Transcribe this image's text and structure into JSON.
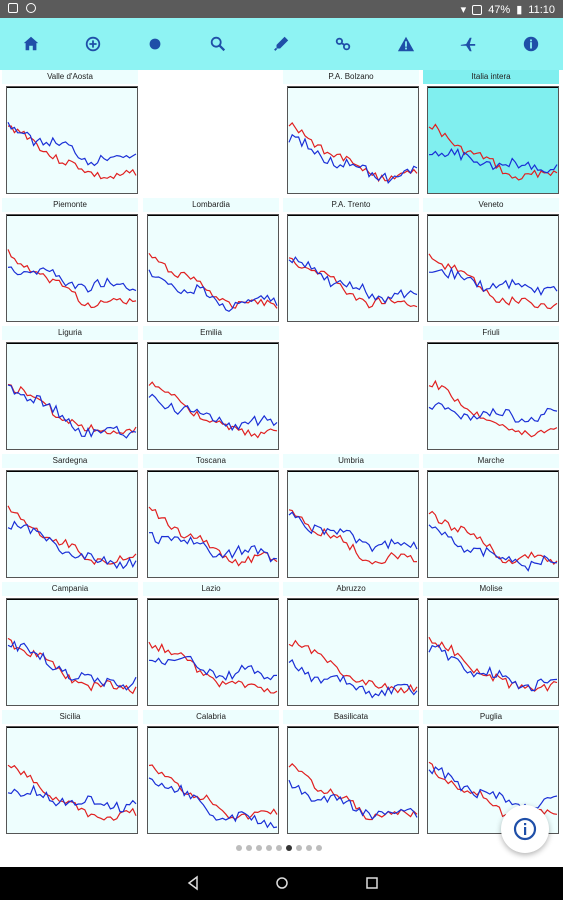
{
  "status_bar": {
    "battery": "47%",
    "time": "11:10",
    "icons": [
      "image-icon",
      "clock-icon",
      "wifi-icon",
      "sim-icon",
      "battery-icon"
    ]
  },
  "toolbar": {
    "icons": [
      "home-icon",
      "scale-icon",
      "virus-icon",
      "search-icon",
      "dropper-icon",
      "graph-icon",
      "warning-icon",
      "plane-icon",
      "info-icon"
    ],
    "active": "graph-icon",
    "accent_color": "#8ef3f3",
    "icon_color": "#1f4fa8"
  },
  "series_colors": {
    "red": "#e02020",
    "blue": "#1a2fd6"
  },
  "regions": [
    {
      "name": "Valle d'Aosta",
      "row": 0,
      "col": 0
    },
    {
      "name": "P.A. Bolzano",
      "row": 0,
      "col": 2
    },
    {
      "name": "Italia intera",
      "row": 0,
      "col": 3,
      "highlight": true
    },
    {
      "name": "Piemonte",
      "row": 1,
      "col": 0
    },
    {
      "name": "Lombardia",
      "row": 1,
      "col": 1
    },
    {
      "name": "P.A. Trento",
      "row": 1,
      "col": 2
    },
    {
      "name": "Veneto",
      "row": 1,
      "col": 3
    },
    {
      "name": "Liguria",
      "row": 2,
      "col": 0
    },
    {
      "name": "Emilia",
      "row": 2,
      "col": 1
    },
    {
      "name": "Friuli",
      "row": 2,
      "col": 3
    },
    {
      "name": "Sardegna",
      "row": 3,
      "col": 0
    },
    {
      "name": "Toscana",
      "row": 3,
      "col": 1
    },
    {
      "name": "Umbria",
      "row": 3,
      "col": 2
    },
    {
      "name": "Marche",
      "row": 3,
      "col": 3
    },
    {
      "name": "Campania",
      "row": 4,
      "col": 0
    },
    {
      "name": "Lazio",
      "row": 4,
      "col": 1
    },
    {
      "name": "Abruzzo",
      "row": 4,
      "col": 2
    },
    {
      "name": "Molise",
      "row": 4,
      "col": 3
    },
    {
      "name": "Sicilia",
      "row": 5,
      "col": 0
    },
    {
      "name": "Calabria",
      "row": 5,
      "col": 1
    },
    {
      "name": "Basilicata",
      "row": 5,
      "col": 2
    },
    {
      "name": "Puglia",
      "row": 5,
      "col": 3
    }
  ],
  "pager": {
    "count": 9,
    "active": 5
  },
  "fab": {
    "icon": "info-icon"
  },
  "nav": {
    "icons": [
      "back-icon",
      "home-circle-icon",
      "recent-apps-icon"
    ]
  }
}
